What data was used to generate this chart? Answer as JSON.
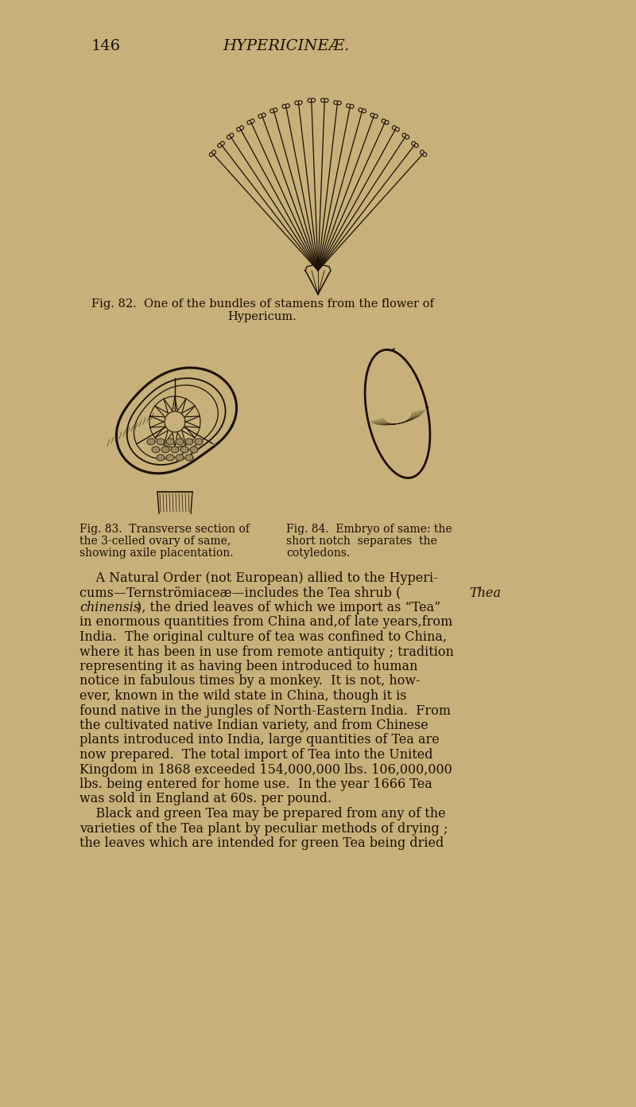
{
  "bg_color": "#c8b07a",
  "text_color": "#1a1005",
  "header_number": "146",
  "header_title": "HYPERICINEÆ.",
  "fig82_cap1": "Fig. 82.  One of the bundles of stamens from the flower of",
  "fig82_cap2": "Hypericum.",
  "fig83_cap1": "Fig. 83.  Transverse section of",
  "fig83_cap2": "the 3-celled ovary of same,",
  "fig83_cap3": "showing axile placentation.",
  "fig84_cap1": "Fig. 84.  Embryo of same: the",
  "fig84_cap2": "short notch  separates  the",
  "fig84_cap3": "cotyledons.",
  "body_lines": [
    "    A Natural Order (not European) allied to the Hyperi-",
    "cums—Ternströmiaceæ—includes the Tea shrub (",
    "chinensis), the dried leaves of which we import as “Tea”",
    "in enormous quantities from China and,of late years,from",
    "India.  The original culture of tea was confined to China,",
    "where it has been in use from remote antiquity ; tradition",
    "representing it as having been introduced to human",
    "notice in fabulous times by a monkey.  It is not, how-",
    "ever, known in the wild state in China, though it is",
    "found native in the jungles of North-Eastern India.  From",
    "the cultivated native Indian variety, and from Chinese",
    "plants introduced into India, large quantities of Tea are",
    "now prepared.  The total import of Tea into the United",
    "Kingdom in 1868 exceeded 154,000,000 lbs. 106,000,000",
    "lbs. being entered for home use.  In the year 1666 Tea",
    "was sold in England at 60s. per pound.",
    "    Black and green Tea may be prepared from any of the",
    "varieties of the Tea plant by peculiar methods of drying ;",
    "the leaves which are intended for green Tea being dried"
  ],
  "italic_line1_suffix": "Thea",
  "italic_line2_prefix": "chinensis"
}
